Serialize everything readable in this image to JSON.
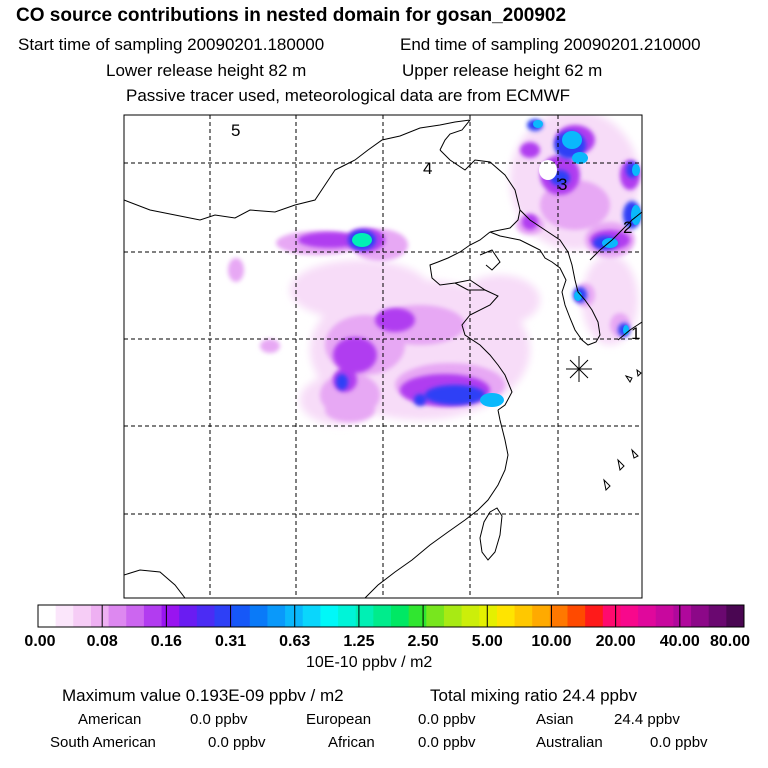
{
  "header": {
    "title": "CO  source contributions in nested domain for gosan_200902",
    "start_label": "Start time of sampling 20090201.180000",
    "end_label": "End time of sampling 20090201.210000",
    "lower_label": "Lower release height   82 m",
    "upper_label": "Upper release height   62 m",
    "note": "Passive tracer used, meteorological data are from ECMWF"
  },
  "map": {
    "region_labels": [
      "5",
      "4",
      "3",
      "2",
      "1"
    ],
    "receptor": "Gosan"
  },
  "colorbar": {
    "colors": [
      "#ffffff",
      "#fbe6fb",
      "#f6cdf6",
      "#eeb0f2",
      "#dd88f0",
      "#cc66f0",
      "#b23cf0",
      "#9914f0",
      "#6a1cf2",
      "#4b2cf4",
      "#2e40f6",
      "#1658f8",
      "#0a7af8",
      "#0a99fa",
      "#0ab8fc",
      "#0ad6fc",
      "#00f8f8",
      "#00f4d8",
      "#00f0b4",
      "#00ec8c",
      "#00e864",
      "#30e630",
      "#78e61e",
      "#a8ea14",
      "#ccee0a",
      "#e4f000",
      "#ffe400",
      "#ffc800",
      "#ffaa00",
      "#ff7800",
      "#ff4a00",
      "#ff1a1a",
      "#ff0a6e",
      "#f8088c",
      "#e0089c",
      "#c8089e",
      "#b0089c",
      "#8c0888",
      "#6a0870",
      "#4a0652"
    ],
    "tick_labels": [
      "0.00",
      "0.08",
      "0.16",
      "0.31",
      "0.63",
      "1.25",
      "2.50",
      "5.00",
      "10.00",
      "20.00",
      "40.00",
      "80.00"
    ],
    "unit": "10E-10 ppbv / m2"
  },
  "summary": {
    "max_value": "Maximum value  0.193E-09 ppbv / m2",
    "total": "Total mixing ratio       24.4 ppbv",
    "sources": [
      {
        "name": "American",
        "value": "0.0 ppbv"
      },
      {
        "name": "European",
        "value": "0.0 ppbv"
      },
      {
        "name": "Asian",
        "value": "24.4 ppbv"
      },
      {
        "name": "South American",
        "value": "0.0 ppbv"
      },
      {
        "name": "African",
        "value": "0.0 ppbv"
      },
      {
        "name": "Australian",
        "value": "0.0 ppbv"
      }
    ]
  }
}
